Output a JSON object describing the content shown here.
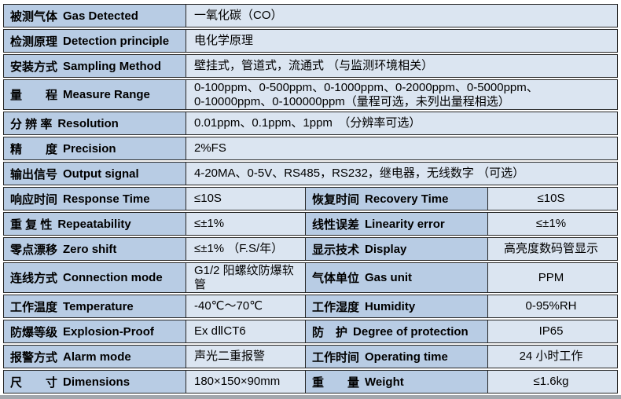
{
  "title": "Gas detector specification table",
  "colors": {
    "label_cell_bg": "#b8cce4",
    "value_cell_bg": "#dbe5f1",
    "border": "#262626",
    "bottom_bar": "#a2a7ad",
    "text": "#000000"
  },
  "rows": [
    {
      "zh": "被测气体",
      "en": "Gas Detected",
      "value": "一氧化碳（CO）"
    },
    {
      "zh": "检测原理",
      "en": "Detection principle",
      "value": "电化学原理"
    },
    {
      "zh": "安装方式",
      "en": "Sampling Method",
      "value": "壁挂式，管道式，流通式 （与监测环境相关）"
    },
    {
      "zh": "量　　程",
      "en": "Measure Range",
      "value": "0-100ppm、0-500ppm、0-1000ppm、0-2000ppm、0-5000ppm、\n0-10000ppm、0-100000ppm（量程可选，未列出量程相选）"
    },
    {
      "zh": "分 辨 率",
      "en": "Resolution",
      "value": "0.01ppm、0.1ppm、1ppm　（分辨率可选）"
    },
    {
      "zh": "精　　度",
      "en": "Precision",
      "value": "2%FS"
    },
    {
      "zh": "输出信号",
      "en": "Output signal",
      "value": "4-20MA、0-5V、RS485，RS232，继电器，无线数字 （可选）"
    }
  ],
  "dual_rows": [
    {
      "zh1": "响应时间",
      "en1": "Response Time",
      "val1": "≤10S",
      "zh2": "恢复时间",
      "en2": "Recovery Time",
      "val2": "≤10S"
    },
    {
      "zh1": "重 复 性",
      "en1": "Repeatability",
      "val1": "≤±1%",
      "zh2": "线性误差",
      "en2": "Linearity error",
      "val2": "≤±1%"
    },
    {
      "zh1": "零点漂移",
      "en1": "Zero shift",
      "val1": "≤±1% （F.S/年）",
      "zh2": "显示技术",
      "en2": "Display",
      "val2": "高亮度数码管显示"
    },
    {
      "zh1": "连线方式",
      "en1": "Connection mode",
      "val1": "G1/2 阳螺纹防爆软管",
      "zh2": "气体单位",
      "en2": "Gas unit",
      "val2": "PPM"
    },
    {
      "zh1": "工作温度",
      "en1": "Temperature",
      "val1": "-40℃～70℃",
      "zh2": "工作湿度",
      "en2": "Humidity",
      "val2": "0-95%RH"
    },
    {
      "zh1": "防爆等级",
      "en1": "Explosion-Proof",
      "val1": "Ex dⅡCT6",
      "zh2": "防　护",
      "en2": "Degree of protection",
      "val2": "IP65"
    },
    {
      "zh1": "报警方式",
      "en1": "Alarm mode",
      "val1": "声光二重报警",
      "zh2": "工作时间",
      "en2": "Operating time",
      "val2": "24 小时工作"
    },
    {
      "zh1": "尺　　寸",
      "en1": "Dimensions",
      "val1": "180×150×90mm",
      "zh2": "重　　量",
      "en2": "Weight",
      "val2": "≤1.6kg"
    }
  ]
}
